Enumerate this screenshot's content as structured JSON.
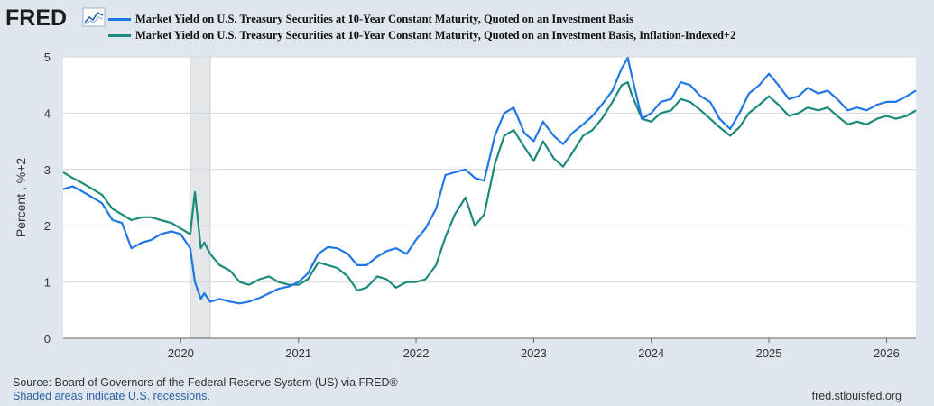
{
  "header": {
    "logo_text": "FRED",
    "logo_icon": "chart-line-icon"
  },
  "legend": [
    {
      "label": "Market Yield on U.S. Treasury Securities at 10-Year Constant Maturity, Quoted on an Investment Basis",
      "color": "#1f77e6"
    },
    {
      "label": "Market Yield on U.S. Treasury Securities at 10-Year Constant Maturity, Quoted on an Investment Basis, Inflation-Indexed+2",
      "color": "#1a8a7a"
    }
  ],
  "footer": {
    "source": "Source: Board of Governors of the Federal Reserve System (US) via FRED®",
    "recession_note": "Shaded areas indicate U.S. recessions.",
    "site": "fred.stlouisfed.org"
  },
  "chart_data": {
    "type": "line",
    "title": "",
    "xlabel": "",
    "ylabel": "Percent , %+2",
    "xlim": [
      2019.0,
      2026.25
    ],
    "ylim": [
      0,
      5
    ],
    "yticks": [
      0,
      1,
      2,
      3,
      4,
      5
    ],
    "xticks": [
      2020,
      2021,
      2022,
      2023,
      2024,
      2025,
      2026
    ],
    "grid": true,
    "recessions": [
      [
        2020.08,
        2020.25
      ]
    ],
    "series": [
      {
        "name": "Market Yield on U.S. Treasury Securities at 10-Year Constant Maturity, Quoted on an Investment Basis",
        "color": "#1f77e6",
        "x": [
          2019.0,
          2019.08,
          2019.17,
          2019.25,
          2019.33,
          2019.42,
          2019.5,
          2019.58,
          2019.67,
          2019.75,
          2019.83,
          2019.92,
          2020.0,
          2020.08,
          2020.12,
          2020.17,
          2020.2,
          2020.25,
          2020.33,
          2020.42,
          2020.5,
          2020.58,
          2020.67,
          2020.75,
          2020.83,
          2020.92,
          2021.0,
          2021.08,
          2021.17,
          2021.25,
          2021.33,
          2021.42,
          2021.5,
          2021.58,
          2021.67,
          2021.75,
          2021.83,
          2021.92,
          2022.0,
          2022.08,
          2022.17,
          2022.25,
          2022.33,
          2022.42,
          2022.5,
          2022.58,
          2022.67,
          2022.75,
          2022.83,
          2022.92,
          2023.0,
          2023.08,
          2023.17,
          2023.25,
          2023.33,
          2023.42,
          2023.5,
          2023.58,
          2023.67,
          2023.75,
          2023.8,
          2023.83,
          2023.92,
          2024.0,
          2024.08,
          2024.17,
          2024.25,
          2024.33,
          2024.42,
          2024.5,
          2024.58,
          2024.67,
          2024.75,
          2024.83,
          2024.92,
          2025.0,
          2025.08,
          2025.17,
          2025.25,
          2025.33,
          2025.42,
          2025.5,
          2025.58,
          2025.67,
          2025.75,
          2025.83,
          2025.92,
          2026.0,
          2026.08,
          2026.17,
          2026.25
        ],
        "values": [
          2.65,
          2.7,
          2.6,
          2.5,
          2.4,
          2.1,
          2.05,
          1.6,
          1.7,
          1.75,
          1.85,
          1.9,
          1.85,
          1.6,
          1.0,
          0.7,
          0.8,
          0.65,
          0.7,
          0.65,
          0.62,
          0.65,
          0.72,
          0.8,
          0.88,
          0.92,
          1.0,
          1.15,
          1.5,
          1.62,
          1.6,
          1.5,
          1.3,
          1.3,
          1.45,
          1.55,
          1.6,
          1.5,
          1.75,
          1.95,
          2.3,
          2.9,
          2.95,
          3.0,
          2.85,
          2.8,
          3.6,
          4.0,
          4.1,
          3.65,
          3.5,
          3.85,
          3.6,
          3.45,
          3.65,
          3.8,
          3.95,
          4.15,
          4.4,
          4.8,
          4.98,
          4.7,
          3.9,
          4.0,
          4.2,
          4.25,
          4.55,
          4.5,
          4.3,
          4.2,
          3.9,
          3.72,
          4.0,
          4.35,
          4.5,
          4.7,
          4.5,
          4.25,
          4.3,
          4.45,
          4.35,
          4.4,
          4.25,
          4.05,
          4.1,
          4.05,
          4.15,
          4.2,
          4.2,
          4.3,
          4.4
        ]
      },
      {
        "name": "Market Yield on U.S. Treasury Securities at 10-Year Constant Maturity, Quoted on an Investment Basis, Inflation-Indexed+2",
        "color": "#1a8a7a",
        "x": [
          2019.0,
          2019.08,
          2019.17,
          2019.25,
          2019.33,
          2019.42,
          2019.5,
          2019.58,
          2019.67,
          2019.75,
          2019.83,
          2019.92,
          2020.0,
          2020.08,
          2020.12,
          2020.17,
          2020.2,
          2020.25,
          2020.33,
          2020.42,
          2020.5,
          2020.58,
          2020.67,
          2020.75,
          2020.83,
          2020.92,
          2021.0,
          2021.08,
          2021.17,
          2021.25,
          2021.33,
          2021.42,
          2021.5,
          2021.58,
          2021.67,
          2021.75,
          2021.83,
          2021.92,
          2022.0,
          2022.08,
          2022.17,
          2022.25,
          2022.33,
          2022.42,
          2022.5,
          2022.58,
          2022.67,
          2022.75,
          2022.83,
          2022.92,
          2023.0,
          2023.08,
          2023.17,
          2023.25,
          2023.33,
          2023.42,
          2023.5,
          2023.58,
          2023.67,
          2023.75,
          2023.8,
          2023.83,
          2023.92,
          2024.0,
          2024.08,
          2024.17,
          2024.25,
          2024.33,
          2024.42,
          2024.5,
          2024.58,
          2024.67,
          2024.75,
          2024.83,
          2024.92,
          2025.0,
          2025.08,
          2025.17,
          2025.25,
          2025.33,
          2025.42,
          2025.5,
          2025.58,
          2025.67,
          2025.75,
          2025.83,
          2025.92,
          2026.0,
          2026.08,
          2026.17,
          2026.25
        ],
        "values": [
          2.95,
          2.85,
          2.75,
          2.65,
          2.55,
          2.3,
          2.2,
          2.1,
          2.15,
          2.15,
          2.1,
          2.05,
          1.95,
          1.85,
          2.6,
          1.6,
          1.7,
          1.5,
          1.3,
          1.2,
          1.0,
          0.95,
          1.05,
          1.1,
          1.0,
          0.95,
          0.95,
          1.05,
          1.35,
          1.3,
          1.25,
          1.1,
          0.85,
          0.9,
          1.1,
          1.05,
          0.9,
          1.0,
          1.0,
          1.05,
          1.3,
          1.8,
          2.2,
          2.5,
          2.0,
          2.2,
          3.1,
          3.6,
          3.7,
          3.4,
          3.15,
          3.5,
          3.2,
          3.05,
          3.3,
          3.6,
          3.7,
          3.9,
          4.2,
          4.5,
          4.55,
          4.35,
          3.9,
          3.85,
          4.0,
          4.05,
          4.25,
          4.2,
          4.05,
          3.9,
          3.75,
          3.6,
          3.75,
          4.0,
          4.15,
          4.3,
          4.15,
          3.95,
          4.0,
          4.1,
          4.05,
          4.1,
          3.95,
          3.8,
          3.85,
          3.8,
          3.9,
          3.95,
          3.9,
          3.95,
          4.05
        ]
      }
    ]
  }
}
